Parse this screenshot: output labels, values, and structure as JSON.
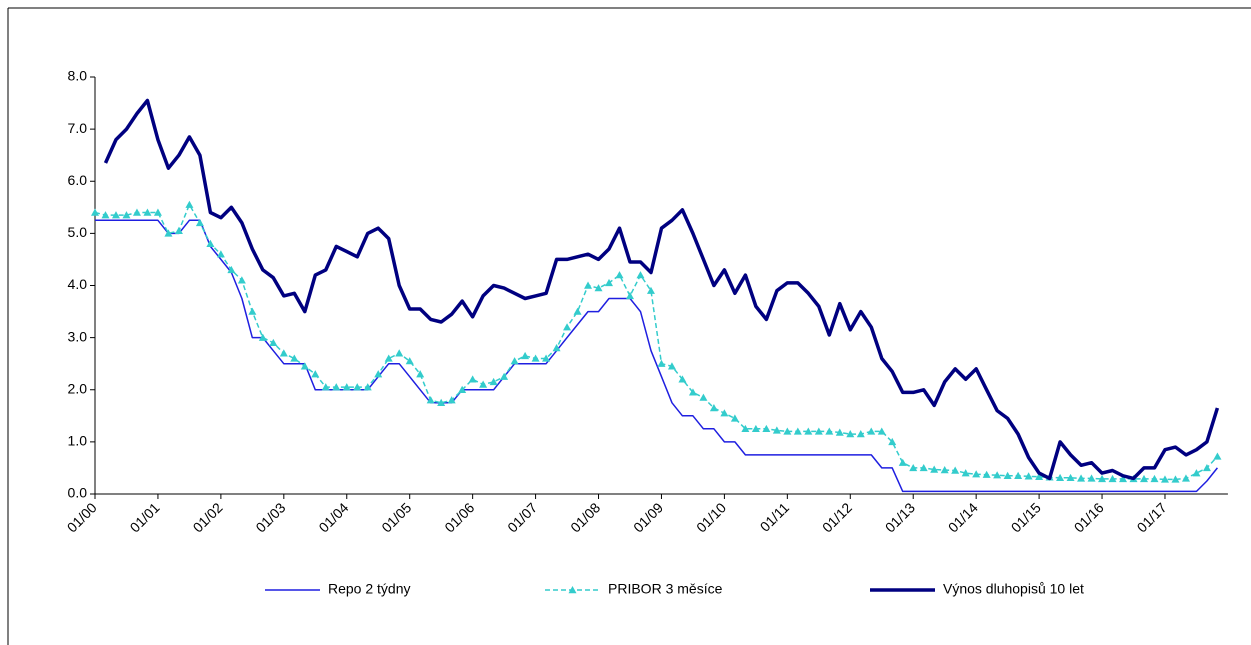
{
  "chart_data": {
    "type": "line",
    "categories": [
      "01/00",
      null,
      null,
      null,
      null,
      null,
      "01/01",
      null,
      null,
      null,
      null,
      null,
      "01/02",
      null,
      null,
      null,
      null,
      null,
      "01/03",
      null,
      null,
      null,
      null,
      null,
      "01/04",
      null,
      null,
      null,
      null,
      null,
      "01/05",
      null,
      null,
      null,
      null,
      null,
      "01/06",
      null,
      null,
      null,
      null,
      null,
      "01/07",
      null,
      null,
      null,
      null,
      null,
      "01/08",
      null,
      null,
      null,
      null,
      null,
      "01/09",
      null,
      null,
      null,
      null,
      null,
      "01/10",
      null,
      null,
      null,
      null,
      null,
      "01/11",
      null,
      null,
      null,
      null,
      null,
      "01/12",
      null,
      null,
      null,
      null,
      null,
      "01/13",
      null,
      null,
      null,
      null,
      null,
      "01/14",
      null,
      null,
      null,
      null,
      null,
      "01/15",
      null,
      null,
      null,
      null,
      null,
      "01/16",
      null,
      null,
      null,
      null,
      null,
      "01/17",
      null,
      null,
      null,
      null,
      null
    ],
    "series": [
      {
        "name": "Repo 2 týdny",
        "color": "#1f1fe0",
        "width": 1.5,
        "dash": false,
        "marker": "none",
        "values": [
          5.25,
          5.25,
          5.25,
          5.25,
          5.25,
          5.25,
          5.25,
          5.0,
          5.0,
          5.25,
          5.25,
          4.75,
          4.5,
          4.25,
          3.75,
          3.0,
          3.0,
          2.75,
          2.5,
          2.5,
          2.5,
          2.0,
          2.0,
          2.0,
          2.0,
          2.0,
          2.0,
          2.25,
          2.5,
          2.5,
          2.25,
          2.0,
          1.75,
          1.75,
          1.75,
          2.0,
          2.0,
          2.0,
          2.0,
          2.25,
          2.5,
          2.5,
          2.5,
          2.5,
          2.75,
          3.0,
          3.25,
          3.5,
          3.5,
          3.75,
          3.75,
          3.75,
          3.5,
          2.75,
          2.25,
          1.75,
          1.5,
          1.5,
          1.25,
          1.25,
          1.0,
          1.0,
          0.75,
          0.75,
          0.75,
          0.75,
          0.75,
          0.75,
          0.75,
          0.75,
          0.75,
          0.75,
          0.75,
          0.75,
          0.75,
          0.5,
          0.5,
          0.05,
          0.05,
          0.05,
          0.05,
          0.05,
          0.05,
          0.05,
          0.05,
          0.05,
          0.05,
          0.05,
          0.05,
          0.05,
          0.05,
          0.05,
          0.05,
          0.05,
          0.05,
          0.05,
          0.05,
          0.05,
          0.05,
          0.05,
          0.05,
          0.05,
          0.05,
          0.05,
          0.05,
          0.05,
          0.25,
          0.5
        ]
      },
      {
        "name": "PRIBOR 3 měsíce",
        "color": "#33cccc",
        "width": 1.5,
        "dash": true,
        "marker": "triangle",
        "values": [
          5.4,
          5.35,
          5.35,
          5.35,
          5.4,
          5.4,
          5.4,
          5.0,
          5.05,
          5.55,
          5.2,
          4.8,
          4.6,
          4.3,
          4.1,
          3.5,
          3.0,
          2.9,
          2.7,
          2.6,
          2.45,
          2.3,
          2.05,
          2.05,
          2.05,
          2.05,
          2.05,
          2.3,
          2.6,
          2.7,
          2.55,
          2.3,
          1.8,
          1.75,
          1.8,
          2.0,
          2.2,
          2.1,
          2.15,
          2.25,
          2.55,
          2.65,
          2.6,
          2.6,
          2.8,
          3.2,
          3.5,
          4.0,
          3.95,
          4.05,
          4.2,
          3.8,
          4.2,
          3.9,
          2.5,
          2.45,
          2.2,
          1.95,
          1.85,
          1.65,
          1.55,
          1.45,
          1.25,
          1.25,
          1.25,
          1.22,
          1.2,
          1.2,
          1.2,
          1.2,
          1.2,
          1.18,
          1.15,
          1.15,
          1.2,
          1.2,
          1.0,
          0.6,
          0.5,
          0.5,
          0.47,
          0.46,
          0.45,
          0.4,
          0.38,
          0.37,
          0.36,
          0.35,
          0.35,
          0.34,
          0.33,
          0.32,
          0.31,
          0.31,
          0.3,
          0.3,
          0.29,
          0.29,
          0.29,
          0.29,
          0.29,
          0.29,
          0.28,
          0.28,
          0.3,
          0.4,
          0.5,
          0.72
        ]
      },
      {
        "name": "Výnos dluhopisů 10 let",
        "color": "#000080",
        "width": 3.5,
        "dash": false,
        "marker": "none",
        "values": [
          null,
          6.35,
          6.8,
          7.0,
          7.3,
          7.55,
          6.8,
          6.25,
          6.5,
          6.85,
          6.5,
          5.4,
          5.3,
          5.5,
          5.2,
          4.7,
          4.3,
          4.15,
          3.8,
          3.85,
          3.5,
          4.2,
          4.3,
          4.75,
          4.65,
          4.55,
          5.0,
          5.1,
          4.9,
          4.0,
          3.55,
          3.55,
          3.35,
          3.3,
          3.45,
          3.7,
          3.4,
          3.8,
          4.0,
          3.95,
          3.85,
          3.75,
          3.8,
          3.85,
          4.5,
          4.5,
          4.55,
          4.6,
          4.5,
          4.7,
          5.1,
          4.45,
          4.45,
          4.25,
          5.1,
          5.25,
          5.45,
          5.0,
          4.5,
          4.0,
          4.3,
          3.85,
          4.2,
          3.6,
          3.35,
          3.9,
          4.05,
          4.05,
          3.85,
          3.6,
          3.05,
          3.65,
          3.15,
          3.5,
          3.2,
          2.6,
          2.35,
          1.95,
          1.95,
          2.0,
          1.7,
          2.15,
          2.4,
          2.2,
          2.4,
          2.0,
          1.6,
          1.45,
          1.15,
          0.7,
          0.4,
          0.3,
          1.0,
          0.75,
          0.55,
          0.6,
          0.4,
          0.45,
          0.35,
          0.3,
          0.5,
          0.5,
          0.85,
          0.9,
          0.75,
          0.85,
          1.0,
          1.65
        ]
      }
    ],
    "ylim": [
      0,
      8
    ],
    "yticks": [
      {
        "value": 0,
        "label": "0.0"
      },
      {
        "value": 1,
        "label": "1.0"
      },
      {
        "value": 2,
        "label": "2.0"
      },
      {
        "value": 3,
        "label": "3.0"
      },
      {
        "value": 4,
        "label": "4.0"
      },
      {
        "value": 5,
        "label": "5.0"
      },
      {
        "value": 6,
        "label": "6.0"
      },
      {
        "value": 7,
        "label": "7.0"
      },
      {
        "value": 8,
        "label": "8.0"
      }
    ],
    "grid": false,
    "legend": "bottom"
  }
}
